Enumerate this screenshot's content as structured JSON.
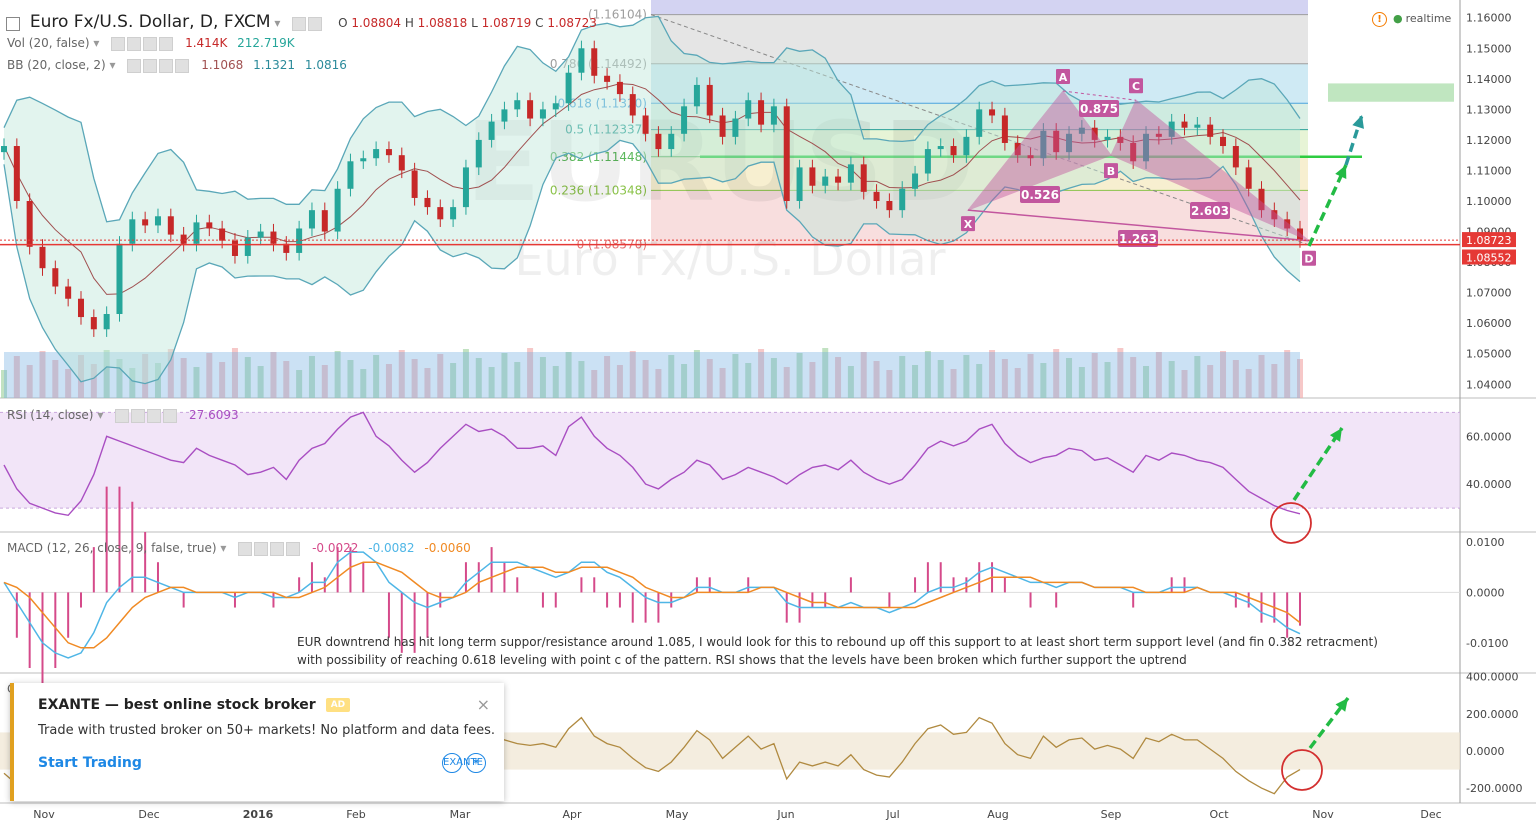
{
  "header": {
    "symbol": "Euro Fx/U.S. Dollar, D, FXCM",
    "open_label": "O",
    "open": "1.08804",
    "high_label": "H",
    "high": "1.08818",
    "low_label": "L",
    "low": "1.08719",
    "close_label": "C",
    "close": "1.08723"
  },
  "indicators": {
    "vol": {
      "label": "Vol (20, false)",
      "v1": "1.414K",
      "v2": "212.719K"
    },
    "bb": {
      "label": "BB (20, close, 2)",
      "v1": "1.1068",
      "v2": "1.1321",
      "v3": "1.0816"
    },
    "rsi": {
      "label": "RSI (14, close)",
      "v1": "27.6093"
    },
    "macd": {
      "label": "MACD (12, 26, close, 9, false, true)",
      "v1": "-0.0022",
      "v2": "-0.0082",
      "v3": "-0.0060"
    },
    "cci": {
      "label": "C"
    }
  },
  "realtime": "realtime",
  "watermark": {
    "line1": "EURUSD",
    "line2": "Euro Fx/U.S. Dollar"
  },
  "annotation": "EUR downtrend has hit long term suppor/resistance around 1.085, I would look for this to rebound up off this support to at least short term support level (and fin 0.382 retracment) with possibility of reaching 0.618 leveling with point c of the pattern. RSI shows that the levels have been broken which further support the uptrend",
  "ad": {
    "title": "EXANTE — best online stock broker",
    "tag": "AD",
    "body": "Trade with trusted broker on 50+ markets! No platform and data fees.",
    "cta": "Start Trading",
    "logo": "EXANTE",
    "close": "×"
  },
  "colors": {
    "up": "#26a69a",
    "down": "#c62828",
    "bb": "#5aa7b8",
    "ma": "#a05050",
    "rsi": "#a94ec2",
    "macd": "#4fb6e6",
    "signal": "#f08a24",
    "hist": "#d54a8a",
    "cci": "#b08a40",
    "pattern": "#c2569e",
    "arrow": "#22bb44",
    "arrow2": "#2a9a9a",
    "support": "#e53935",
    "fib_green": "#2ecc40"
  },
  "chart_data": [
    {
      "type": "candlestick",
      "title": "Euro Fx/U.S. Dollar, D, FXCM",
      "x_ticks": [
        "Nov",
        "Dec",
        "2016",
        "Feb",
        "Mar",
        "Apr",
        "May",
        "Jun",
        "Jul",
        "Aug",
        "Sep",
        "Oct",
        "Nov",
        "Dec"
      ],
      "y_ticks": [
        "1.16000",
        "1.15000",
        "1.14000",
        "1.13000",
        "1.12000",
        "1.11000",
        "1.10000",
        "1.09000",
        "1.08000",
        "1.07000",
        "1.06000",
        "1.05000",
        "1.04000"
      ],
      "ylim": [
        1.0355,
        1.1645
      ],
      "close_series": [
        1.118,
        1.1,
        1.085,
        1.078,
        1.072,
        1.068,
        1.062,
        1.058,
        1.063,
        1.086,
        1.094,
        1.092,
        1.095,
        1.089,
        1.086,
        1.093,
        1.091,
        1.087,
        1.082,
        1.088,
        1.09,
        1.086,
        1.083,
        1.091,
        1.097,
        1.09,
        1.104,
        1.113,
        1.114,
        1.117,
        1.115,
        1.11,
        1.101,
        1.098,
        1.094,
        1.098,
        1.111,
        1.12,
        1.126,
        1.13,
        1.133,
        1.127,
        1.13,
        1.132,
        1.142,
        1.15,
        1.141,
        1.139,
        1.135,
        1.128,
        1.122,
        1.117,
        1.122,
        1.131,
        1.138,
        1.128,
        1.121,
        1.127,
        1.133,
        1.125,
        1.131,
        1.1,
        1.111,
        1.105,
        1.108,
        1.106,
        1.112,
        1.103,
        1.1,
        1.097,
        1.104,
        1.109,
        1.117,
        1.118,
        1.115,
        1.121,
        1.13,
        1.128,
        1.119,
        1.115,
        1.114,
        1.123,
        1.116,
        1.122,
        1.124,
        1.12,
        1.121,
        1.119,
        1.113,
        1.122,
        1.121,
        1.126,
        1.124,
        1.125,
        1.121,
        1.118,
        1.111,
        1.104,
        1.097,
        1.094,
        1.091,
        1.0872
      ],
      "current_price_label": "1.08723",
      "second_price_label": "1.08552",
      "fib_levels": [
        {
          "ratio": "",
          "price": "(1.16104)",
          "value": 1.16104
        },
        {
          "ratio": "0.786",
          "price": "(1.14492)",
          "value": 1.14492
        },
        {
          "ratio": "0.618",
          "price": "(1.1320)",
          "value": 1.132
        },
        {
          "ratio": "0.5",
          "price": "(1.12337)",
          "value": 1.12337
        },
        {
          "ratio": "0.382",
          "price": "(1.11448)",
          "value": 1.11448
        },
        {
          "ratio": "0.236",
          "price": "(1.10348)",
          "value": 1.10348
        },
        {
          "ratio": "0",
          "price": "(1.08570)",
          "value": 1.0857
        }
      ],
      "harmonic_points": [
        {
          "label": "X",
          "value": 1.097
        },
        {
          "label": "A",
          "value": 1.136
        },
        {
          "label": "B",
          "value": 1.115
        },
        {
          "label": "C",
          "value": 1.133
        },
        {
          "label": "D",
          "value": 1.087
        }
      ],
      "harmonic_ratios": [
        "0.875",
        "0.526",
        "2.603",
        "1.263"
      ]
    },
    {
      "type": "line",
      "name": "RSI (14, close)",
      "y_ticks": [
        "60.0000",
        "40.0000"
      ],
      "ylim": [
        20,
        76
      ],
      "values": [
        48,
        38,
        32,
        30,
        28,
        27,
        33,
        44,
        60,
        58,
        56,
        54,
        52,
        50,
        49,
        55,
        52,
        50,
        48,
        44,
        45,
        47,
        42,
        50,
        55,
        57,
        63,
        68,
        70,
        60,
        56,
        50,
        45,
        49,
        55,
        60,
        65,
        62,
        63,
        60,
        55,
        55,
        56,
        52,
        64,
        68,
        60,
        55,
        52,
        47,
        40,
        38,
        42,
        45,
        50,
        48,
        42,
        44,
        47,
        45,
        43,
        40,
        44,
        47,
        48,
        46,
        50,
        45,
        42,
        40,
        42,
        48,
        55,
        58,
        56,
        58,
        63,
        65,
        57,
        52,
        49,
        51,
        52,
        55,
        54,
        50,
        51,
        48,
        45,
        52,
        50,
        53,
        52,
        50,
        49,
        47,
        42,
        37,
        34,
        31,
        29,
        27.6
      ]
    },
    {
      "type": "line",
      "name": "MACD (12, 26, close, 9, false, true)",
      "y_ticks": [
        "0.0100",
        "0.0000",
        "-0.0100"
      ],
      "ylim": [
        -0.016,
        0.012
      ],
      "macd": [
        0.002,
        -0.002,
        -0.006,
        -0.01,
        -0.012,
        -0.013,
        -0.012,
        -0.008,
        -0.002,
        0.001,
        0.003,
        0.003,
        0.002,
        0.001,
        0.0,
        0.0,
        0.0,
        0.0,
        -0.001,
        0.0,
        0.0,
        -0.001,
        -0.001,
        0.0,
        0.002,
        0.002,
        0.006,
        0.008,
        0.008,
        0.006,
        0.002,
        0.0,
        -0.002,
        -0.003,
        -0.002,
        -0.001,
        0.002,
        0.004,
        0.006,
        0.006,
        0.006,
        0.005,
        0.004,
        0.003,
        0.004,
        0.006,
        0.006,
        0.004,
        0.003,
        0.001,
        -0.001,
        -0.002,
        -0.002,
        -0.001,
        0.001,
        0.001,
        0.0,
        0.0,
        0.001,
        0.001,
        0.001,
        -0.002,
        -0.003,
        -0.003,
        -0.003,
        -0.003,
        -0.002,
        -0.003,
        -0.003,
        -0.004,
        -0.003,
        -0.002,
        0.0,
        0.001,
        0.001,
        0.002,
        0.004,
        0.005,
        0.004,
        0.003,
        0.002,
        0.002,
        0.001,
        0.002,
        0.002,
        0.001,
        0.001,
        0.001,
        0.0,
        0.0,
        0.0,
        0.001,
        0.001,
        0.001,
        0.0,
        0.0,
        -0.001,
        -0.002,
        -0.004,
        -0.005,
        -0.007,
        -0.0082
      ],
      "signal": [
        0.002,
        0.001,
        -0.001,
        -0.004,
        -0.007,
        -0.01,
        -0.011,
        -0.011,
        -0.009,
        -0.006,
        -0.003,
        -0.001,
        0.0,
        0.001,
        0.001,
        0.0,
        0.0,
        0.0,
        0.0,
        0.0,
        0.0,
        0.0,
        -0.001,
        -0.001,
        0.0,
        0.001,
        0.003,
        0.005,
        0.006,
        0.006,
        0.005,
        0.004,
        0.002,
        0.0,
        -0.001,
        -0.001,
        0.0,
        0.002,
        0.003,
        0.004,
        0.005,
        0.005,
        0.005,
        0.004,
        0.004,
        0.005,
        0.005,
        0.005,
        0.004,
        0.003,
        0.001,
        0.0,
        -0.001,
        -0.001,
        0.0,
        0.0,
        0.0,
        0.0,
        0.0,
        0.001,
        0.001,
        0.0,
        -0.001,
        -0.002,
        -0.002,
        -0.003,
        -0.003,
        -0.003,
        -0.003,
        -0.003,
        -0.003,
        -0.003,
        -0.002,
        -0.001,
        0.0,
        0.001,
        0.002,
        0.003,
        0.003,
        0.003,
        0.003,
        0.002,
        0.002,
        0.002,
        0.002,
        0.001,
        0.001,
        0.001,
        0.001,
        0.0,
        0.0,
        0.0,
        0.0,
        0.001,
        0.0,
        0.0,
        0.0,
        -0.001,
        -0.002,
        -0.003,
        -0.004,
        -0.006
      ]
    },
    {
      "type": "line",
      "name": "CCI",
      "y_ticks": [
        "400.0000",
        "200.0000",
        "0.0000",
        "-200.0000"
      ],
      "ylim": [
        -280,
        420
      ],
      "values": [
        -120,
        -180,
        -220,
        -240,
        -200,
        -150,
        -120,
        -60,
        40,
        100,
        120,
        80,
        60,
        40,
        20,
        30,
        10,
        0,
        -20,
        10,
        -10,
        -30,
        -60,
        0,
        60,
        80,
        120,
        160,
        180,
        120,
        60,
        0,
        -60,
        -40,
        20,
        60,
        100,
        90,
        100,
        60,
        40,
        30,
        40,
        20,
        120,
        180,
        80,
        40,
        20,
        -40,
        -90,
        -110,
        -60,
        20,
        110,
        60,
        -40,
        20,
        80,
        10,
        40,
        -150,
        -60,
        -80,
        -60,
        -80,
        -20,
        -100,
        -130,
        -140,
        -60,
        40,
        120,
        140,
        90,
        100,
        180,
        150,
        40,
        -20,
        -40,
        80,
        20,
        60,
        70,
        10,
        30,
        10,
        -40,
        70,
        50,
        90,
        60,
        60,
        10,
        -40,
        -110,
        -160,
        -200,
        -230,
        -140,
        -100
      ]
    }
  ]
}
